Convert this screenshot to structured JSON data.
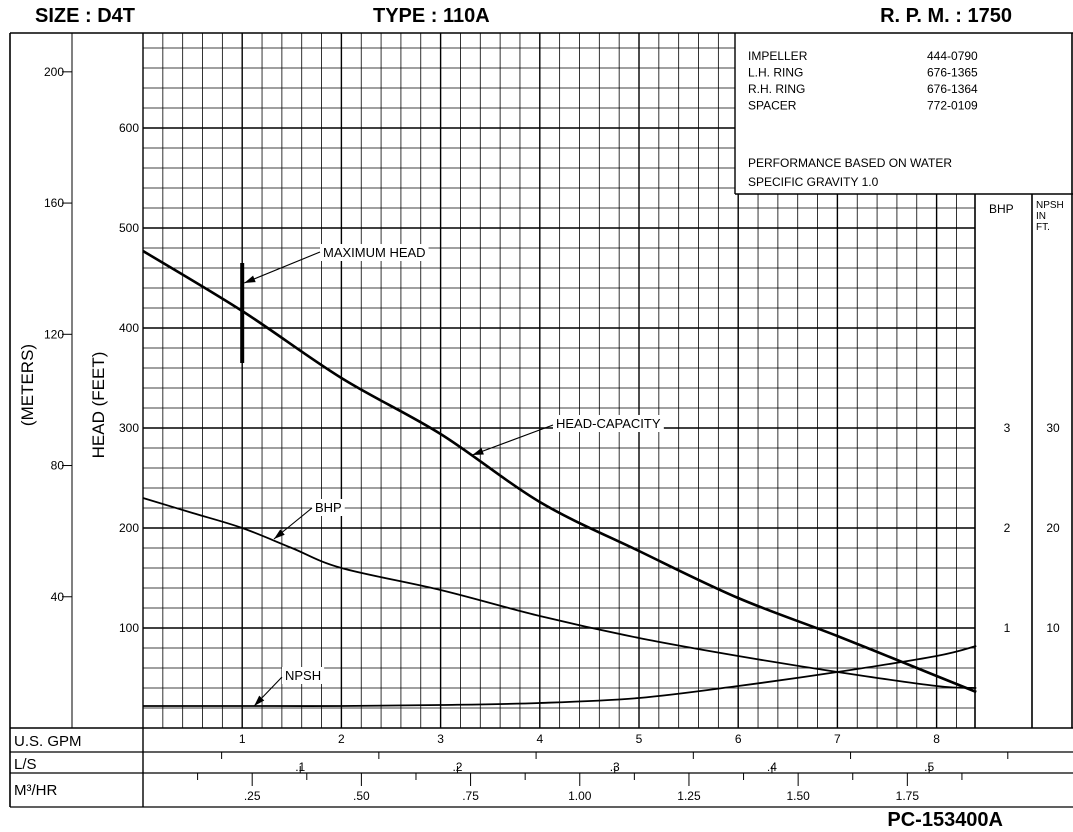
{
  "header": {
    "size": "SIZE : D4T",
    "type": "TYPE :  110A",
    "rpm": "R. P. M. : 1750"
  },
  "footer": {
    "code": "PC-153400A"
  },
  "info": {
    "parts": [
      {
        "name": "IMPELLER",
        "number": "444-0790"
      },
      {
        "name": "L.H. RING",
        "number": "676-1365"
      },
      {
        "name": "R.H. RING",
        "number": "676-1364"
      },
      {
        "name": "SPACER",
        "number": "772-0109"
      }
    ],
    "note_line1": "PERFORMANCE BASED ON WATER",
    "note_line2": "SPECIFIC GRAVITY 1.0"
  },
  "side_columns": {
    "bhp": {
      "title": "BHP",
      "ticks": [
        {
          "v": 3,
          "label": "3"
        },
        {
          "v": 2,
          "label": "2"
        },
        {
          "v": 1,
          "label": "1"
        }
      ]
    },
    "npsh": {
      "title_lines": [
        "NPSH",
        "IN",
        "FT."
      ],
      "ticks": [
        {
          "v": 30,
          "label": "30"
        },
        {
          "v": 20,
          "label": "20"
        },
        {
          "v": 10,
          "label": "10"
        }
      ]
    }
  },
  "chart_data": {
    "type": "line",
    "ylabel": "HEAD (FEET)",
    "ylabel_secondary": "(METERS)",
    "xlim": [
      0,
      8.4
    ],
    "ylim": [
      0,
      640
    ],
    "feet_ticks": [
      {
        "v": 100,
        "label": "100"
      },
      {
        "v": 200,
        "label": "200"
      },
      {
        "v": 300,
        "label": "300"
      },
      {
        "v": 400,
        "label": "400"
      },
      {
        "v": 500,
        "label": "500"
      },
      {
        "v": 600,
        "label": "600"
      }
    ],
    "meter_ticks": [
      {
        "v": 40,
        "label": "40"
      },
      {
        "v": 80,
        "label": "80"
      },
      {
        "v": 120,
        "label": "120"
      },
      {
        "v": 160,
        "label": "160"
      },
      {
        "v": 200,
        "label": "200"
      }
    ],
    "x_axes": [
      {
        "label": "U.S. GPM",
        "ticks": [
          {
            "v": 1,
            "label": "1"
          },
          {
            "v": 2,
            "label": "2"
          },
          {
            "v": 3,
            "label": "3"
          },
          {
            "v": 4,
            "label": "4"
          },
          {
            "v": 5,
            "label": "5"
          },
          {
            "v": 6,
            "label": "6"
          },
          {
            "v": 7,
            "label": "7"
          },
          {
            "v": 8,
            "label": "8"
          }
        ]
      },
      {
        "label": "L/S",
        "ticks": [
          {
            "v": 0.1,
            "label": ".1"
          },
          {
            "v": 0.2,
            "label": ".2"
          },
          {
            "v": 0.3,
            "label": ".3"
          },
          {
            "v": 0.4,
            "label": ".4"
          },
          {
            "v": 0.5,
            "label": ".5"
          }
        ]
      },
      {
        "label": "M³/HR",
        "ticks": [
          {
            "v": 0.25,
            "label": ".25"
          },
          {
            "v": 0.5,
            "label": ".50"
          },
          {
            "v": 0.75,
            "label": ".75"
          },
          {
            "v": 1.0,
            "label": "1.00"
          },
          {
            "v": 1.25,
            "label": "1.25"
          },
          {
            "v": 1.5,
            "label": "1.50"
          },
          {
            "v": 1.75,
            "label": "1.75"
          }
        ]
      }
    ],
    "series": [
      {
        "name": "HEAD-CAPACITY",
        "y_unit": "feet",
        "x": [
          0,
          1,
          2,
          3,
          4,
          5,
          6,
          7,
          8,
          8.4
        ],
        "y": [
          477,
          417,
          350,
          294,
          226,
          177,
          130,
          92,
          52,
          36
        ]
      },
      {
        "name": "BHP",
        "y_unit": "bhp",
        "x": [
          0,
          0.5,
          1,
          1.5,
          2,
          3,
          4,
          5,
          6,
          7,
          8,
          8.4
        ],
        "y": [
          2.3,
          2.15,
          2.0,
          1.8,
          1.6,
          1.38,
          1.12,
          0.9,
          0.72,
          0.56,
          0.42,
          0.4
        ]
      },
      {
        "name": "NPSH",
        "y_unit": "npsh_ft",
        "x": [
          0,
          1,
          2,
          3,
          4,
          5,
          6,
          7,
          8,
          8.4
        ],
        "y": [
          2.2,
          2.2,
          2.2,
          2.3,
          2.5,
          3.0,
          4.2,
          5.6,
          7.2,
          8.2
        ]
      }
    ],
    "maximum_head_marker": {
      "x": 1,
      "y_from": 365,
      "y_to": 465
    },
    "annotations": [
      {
        "text": "MAXIMUM HEAD",
        "target_x": 1.0,
        "target_y": 445
      },
      {
        "text": "HEAD-CAPACITY",
        "target_x": 3.3,
        "target_y": 273
      },
      {
        "text": "BHP",
        "target_x": 1.3,
        "target_y": 189
      },
      {
        "text": "NPSH",
        "target_x": 1.1,
        "target_y": 22
      }
    ],
    "grid": true
  }
}
